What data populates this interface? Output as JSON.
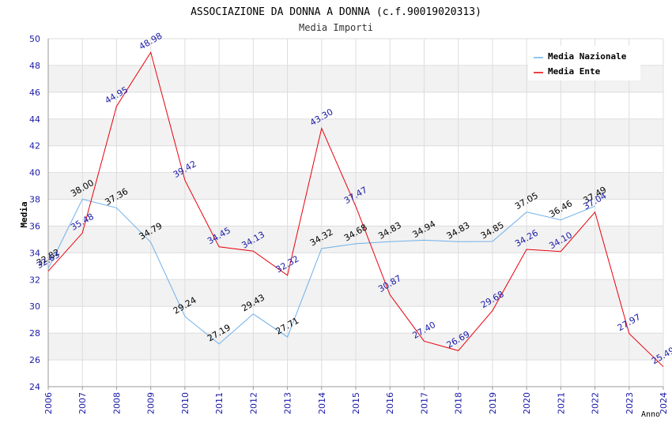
{
  "chart_data": {
    "type": "line",
    "title": "ASSOCIAZIONE DA DONNA A DONNA (c.f.90019020313)",
    "subtitle": "Media Importi",
    "xlabel": "Anno",
    "ylabel": "Media",
    "ylim": [
      24,
      50
    ],
    "yticks": [
      "24",
      "26",
      "28",
      "30",
      "32",
      "34",
      "36",
      "38",
      "40",
      "42",
      "44",
      "46",
      "48",
      "50"
    ],
    "x": [
      "2006",
      "2007",
      "2008",
      "2009",
      "2010",
      "2011",
      "2012",
      "2013",
      "2014",
      "2015",
      "2016",
      "2017",
      "2018",
      "2019",
      "2020",
      "2021",
      "2022",
      "2023",
      "2024"
    ],
    "legend_position": "top-right",
    "grid": true,
    "series": [
      {
        "name": "Media Nazionale",
        "color": "#6fb0e8",
        "label_color": "#000000",
        "values": [
          32.82,
          38.0,
          37.36,
          34.79,
          29.24,
          27.19,
          29.43,
          27.71,
          34.32,
          34.68,
          34.83,
          34.94,
          34.83,
          34.85,
          37.05,
          36.46,
          37.49,
          null,
          null
        ],
        "labels": [
          "32.82",
          "38.00",
          "37.36",
          "34.79",
          "29.24",
          "27.19",
          "29.43",
          "27.71",
          "34.32",
          "34.68",
          "34.83",
          "34.94",
          "34.83",
          "34.85",
          "37.05",
          "36.46",
          "37.49",
          null,
          null
        ]
      },
      {
        "name": "Media Ente",
        "color": "#e8000b",
        "label_color": "#1a1aa8",
        "values": [
          32.63,
          35.48,
          44.95,
          48.98,
          39.42,
          34.45,
          34.13,
          32.32,
          43.3,
          37.47,
          30.87,
          27.4,
          26.69,
          29.68,
          34.26,
          34.1,
          37.04,
          27.97,
          25.49
        ],
        "labels": [
          "32.63",
          "35.48",
          "44.95",
          "48.98",
          "39.42",
          "34.45",
          "34.13",
          "32.32",
          "43.30",
          "37.47",
          "30.87",
          "27.40",
          "26.69",
          "29.68",
          "34.26",
          "34.10",
          "37.04",
          "27.97",
          "25.49"
        ]
      }
    ]
  }
}
